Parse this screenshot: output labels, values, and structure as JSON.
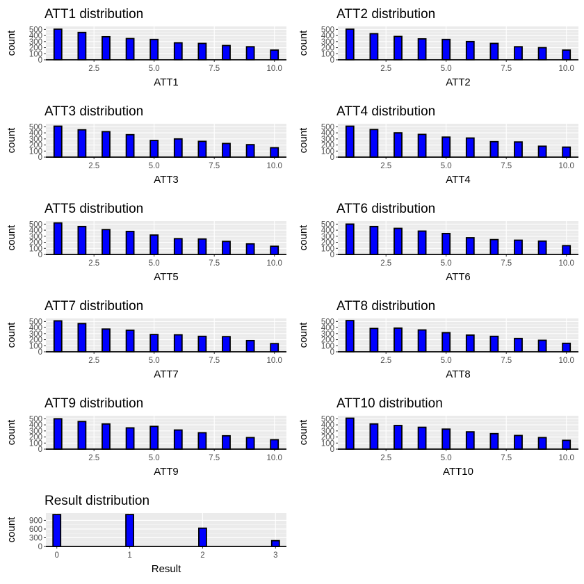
{
  "chart_data": [
    {
      "type": "bar",
      "title": "ATT1 distribution",
      "xlabel": "ATT1",
      "ylabel": "count",
      "x": [
        1,
        2,
        3,
        4,
        5,
        6,
        7,
        8,
        9,
        10
      ],
      "values": [
        505,
        450,
        380,
        350,
        335,
        280,
        270,
        235,
        215,
        160
      ],
      "xlim": [
        0.5,
        10.5
      ],
      "ylim": [
        0,
        550
      ],
      "xticks": [
        "2.5",
        "5.0",
        "7.5",
        "10.0"
      ],
      "yticks": [
        "0",
        "100",
        "200",
        "300",
        "400",
        "500"
      ],
      "bar_color": "#0000ff"
    },
    {
      "type": "bar",
      "title": "ATT2 distribution",
      "xlabel": "ATT2",
      "ylabel": "count",
      "x": [
        1,
        2,
        3,
        4,
        5,
        6,
        7,
        8,
        9,
        10
      ],
      "values": [
        505,
        430,
        385,
        345,
        335,
        300,
        270,
        215,
        200,
        160
      ],
      "xlim": [
        0.5,
        10.5
      ],
      "ylim": [
        0,
        550
      ],
      "xticks": [
        "2.5",
        "5.0",
        "7.5",
        "10.0"
      ],
      "yticks": [
        "0",
        "100",
        "200",
        "300",
        "400",
        "500"
      ],
      "bar_color": "#0000ff"
    },
    {
      "type": "bar",
      "title": "ATT3 distribution",
      "xlabel": "ATT3",
      "ylabel": "count",
      "x": [
        1,
        2,
        3,
        4,
        5,
        6,
        7,
        8,
        9,
        10
      ],
      "values": [
        510,
        450,
        420,
        370,
        275,
        300,
        260,
        225,
        205,
        155
      ],
      "xlim": [
        0.5,
        10.5
      ],
      "ylim": [
        0,
        550
      ],
      "xticks": [
        "2.5",
        "5.0",
        "7.5",
        "10.0"
      ],
      "yticks": [
        "0",
        "100",
        "200",
        "300",
        "400",
        "500"
      ],
      "bar_color": "#0000ff"
    },
    {
      "type": "bar",
      "title": "ATT4 distribution",
      "xlabel": "ATT4",
      "ylabel": "count",
      "x": [
        1,
        2,
        3,
        4,
        5,
        6,
        7,
        8,
        9,
        10
      ],
      "values": [
        510,
        455,
        400,
        375,
        330,
        315,
        255,
        250,
        180,
        165
      ],
      "xlim": [
        0.5,
        10.5
      ],
      "ylim": [
        0,
        550
      ],
      "xticks": [
        "2.5",
        "5.0",
        "7.5",
        "10.0"
      ],
      "yticks": [
        "0",
        "100",
        "200",
        "300",
        "400",
        "500"
      ],
      "bar_color": "#0000ff"
    },
    {
      "type": "bar",
      "title": "ATT5 distribution",
      "xlabel": "ATT5",
      "ylabel": "count",
      "x": [
        1,
        2,
        3,
        4,
        5,
        6,
        7,
        8,
        9,
        10
      ],
      "values": [
        520,
        460,
        410,
        380,
        320,
        260,
        255,
        215,
        175,
        135
      ],
      "xlim": [
        0.5,
        10.5
      ],
      "ylim": [
        0,
        550
      ],
      "xticks": [
        "2.5",
        "5.0",
        "7.5",
        "10.0"
      ],
      "yticks": [
        "0",
        "100",
        "200",
        "300",
        "400",
        "500"
      ],
      "bar_color": "#0000ff"
    },
    {
      "type": "bar",
      "title": "ATT6 distribution",
      "xlabel": "ATT6",
      "ylabel": "count",
      "x": [
        1,
        2,
        3,
        4,
        5,
        6,
        7,
        8,
        9,
        10
      ],
      "values": [
        500,
        460,
        430,
        385,
        345,
        275,
        245,
        235,
        220,
        145
      ],
      "xlim": [
        0.5,
        10.5
      ],
      "ylim": [
        0,
        550
      ],
      "xticks": [
        "2.5",
        "5.0",
        "7.5",
        "10.0"
      ],
      "yticks": [
        "0",
        "100",
        "200",
        "300",
        "400",
        "500"
      ],
      "bar_color": "#0000ff"
    },
    {
      "type": "bar",
      "title": "ATT7 distribution",
      "xlabel": "ATT7",
      "ylabel": "count",
      "x": [
        1,
        2,
        3,
        4,
        5,
        6,
        7,
        8,
        9,
        10
      ],
      "values": [
        510,
        465,
        375,
        355,
        285,
        280,
        255,
        250,
        185,
        135
      ],
      "xlim": [
        0.5,
        10.5
      ],
      "ylim": [
        0,
        550
      ],
      "xticks": [
        "2.5",
        "5.0",
        "7.5",
        "10.0"
      ],
      "yticks": [
        "0",
        "100",
        "200",
        "300",
        "400",
        "500"
      ],
      "bar_color": "#0000ff"
    },
    {
      "type": "bar",
      "title": "ATT8 distribution",
      "xlabel": "ATT8",
      "ylabel": "count",
      "x": [
        1,
        2,
        3,
        4,
        5,
        6,
        7,
        8,
        9,
        10
      ],
      "values": [
        515,
        385,
        390,
        360,
        315,
        275,
        255,
        220,
        190,
        140
      ],
      "xlim": [
        0.5,
        10.5
      ],
      "ylim": [
        0,
        550
      ],
      "xticks": [
        "2.5",
        "5.0",
        "7.5",
        "10.0"
      ],
      "yticks": [
        "0",
        "100",
        "200",
        "300",
        "400",
        "500"
      ],
      "bar_color": "#0000ff"
    },
    {
      "type": "bar",
      "title": "ATT9 distribution",
      "xlabel": "ATT9",
      "ylabel": "count",
      "x": [
        1,
        2,
        3,
        4,
        5,
        6,
        7,
        8,
        9,
        10
      ],
      "values": [
        500,
        455,
        415,
        350,
        375,
        315,
        270,
        220,
        190,
        155
      ],
      "xlim": [
        0.5,
        10.5
      ],
      "ylim": [
        0,
        550
      ],
      "xticks": [
        "2.5",
        "5.0",
        "7.5",
        "10.0"
      ],
      "yticks": [
        "0",
        "100",
        "200",
        "300",
        "400",
        "500"
      ],
      "bar_color": "#0000ff"
    },
    {
      "type": "bar",
      "title": "ATT10 distribution",
      "xlabel": "ATT10",
      "ylabel": "count",
      "x": [
        1,
        2,
        3,
        4,
        5,
        6,
        7,
        8,
        9,
        10
      ],
      "values": [
        510,
        415,
        390,
        360,
        330,
        285,
        255,
        225,
        190,
        145
      ],
      "xlim": [
        0.5,
        10.5
      ],
      "ylim": [
        0,
        550
      ],
      "xticks": [
        "2.5",
        "5.0",
        "7.5",
        "10.0"
      ],
      "yticks": [
        "0",
        "100",
        "200",
        "300",
        "400",
        "500"
      ],
      "bar_color": "#0000ff"
    },
    {
      "type": "bar",
      "title": "Result distribution",
      "xlabel": "Result",
      "ylabel": "count",
      "x": [
        0,
        1,
        2,
        3
      ],
      "values": [
        1100,
        1100,
        630,
        200
      ],
      "xlim": [
        -0.15,
        3.15
      ],
      "ylim": [
        0,
        1150
      ],
      "xticks": [
        "0",
        "1",
        "2",
        "3"
      ],
      "yticks": [
        "0",
        "300",
        "600",
        "900"
      ],
      "bar_color": "#0000ff"
    }
  ]
}
